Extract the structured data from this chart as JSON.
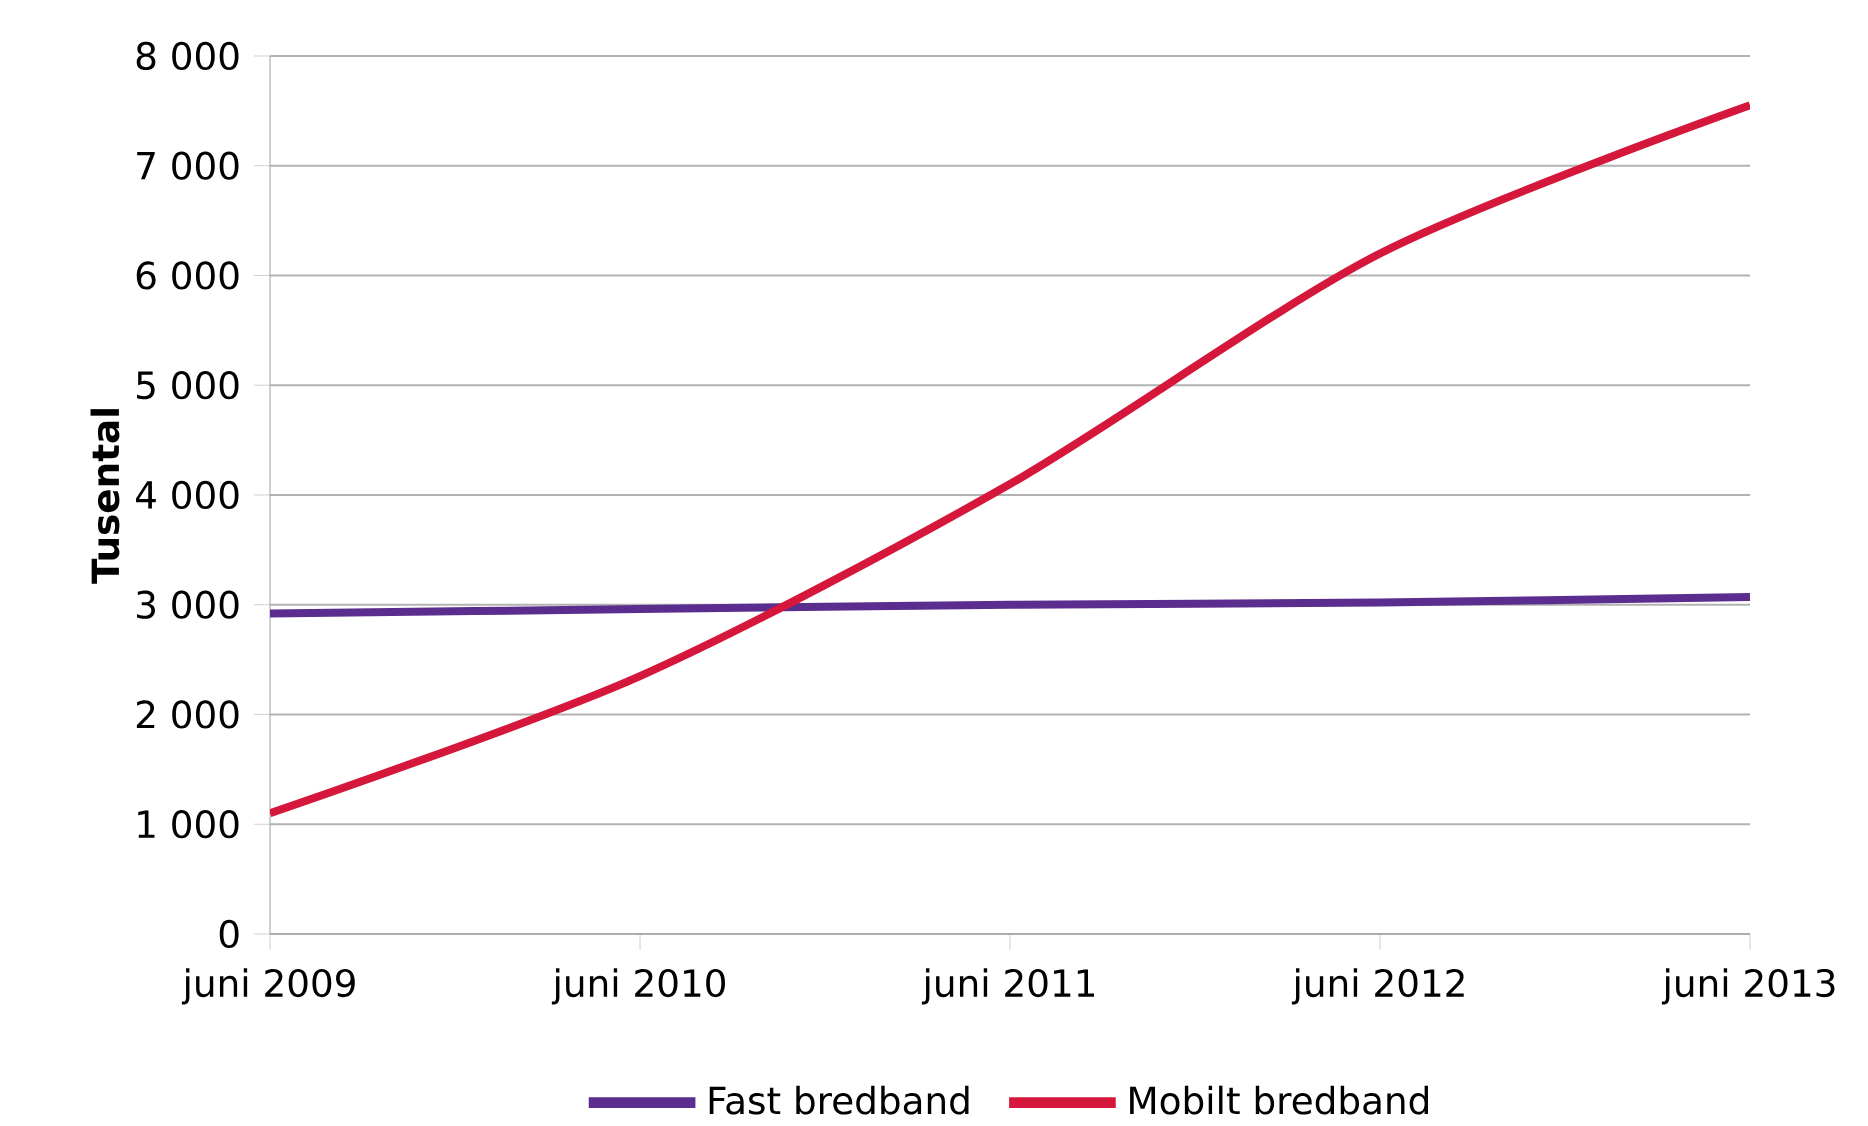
{
  "chart_data": {
    "type": "line",
    "ylabel": "Tusental",
    "categories": [
      "juni 2009",
      "juni 2010",
      "juni 2011",
      "juni 2012",
      "juni 2013"
    ],
    "series": [
      {
        "name": "Fast bredband",
        "color": "#5b2d8e",
        "values": [
          2920,
          2960,
          3000,
          3020,
          3070
        ]
      },
      {
        "name": "Mobilt bredband",
        "color": "#d6173c",
        "values": [
          1100,
          2350,
          4100,
          6200,
          7550
        ]
      }
    ],
    "ylim": [
      0,
      8000
    ],
    "yticks": [
      {
        "value": 0,
        "label": "0"
      },
      {
        "value": 1000,
        "label": "1 000"
      },
      {
        "value": 2000,
        "label": "2 000"
      },
      {
        "value": 3000,
        "label": "3 000"
      },
      {
        "value": 4000,
        "label": "4 000"
      },
      {
        "value": 5000,
        "label": "5 000"
      },
      {
        "value": 6000,
        "label": "6 000"
      },
      {
        "value": 7000,
        "label": "7 000"
      },
      {
        "value": 8000,
        "label": "8 000"
      }
    ],
    "grid": "y",
    "legend": "bottom",
    "marker": "none",
    "line_style": "solid"
  }
}
